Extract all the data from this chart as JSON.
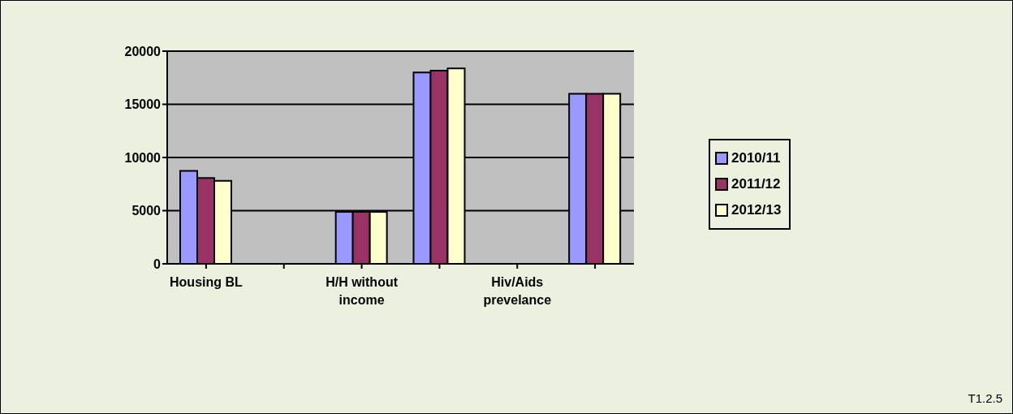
{
  "chart_data": {
    "type": "bar",
    "categories": [
      "Housing BL",
      null,
      "H/H without income",
      null,
      "Hiv/Aids prevelance",
      null
    ],
    "series": [
      {
        "name": "2010/11",
        "color": "#9999ff",
        "values": [
          8750,
          0,
          4890,
          17990,
          0,
          16000
        ]
      },
      {
        "name": "2011/12",
        "color": "#993366",
        "values": [
          8070,
          0,
          4890,
          18170,
          0,
          16000
        ]
      },
      {
        "name": "2012/13",
        "color": "#ffffcc",
        "values": [
          7810,
          0,
          4890,
          18370,
          0,
          16000
        ]
      }
    ],
    "ylim": [
      0,
      20000
    ],
    "yticks": [
      0,
      5000,
      10000,
      15000,
      20000
    ],
    "grid": "y",
    "legend": "right",
    "annotations": [
      "T1.2.5"
    ]
  }
}
